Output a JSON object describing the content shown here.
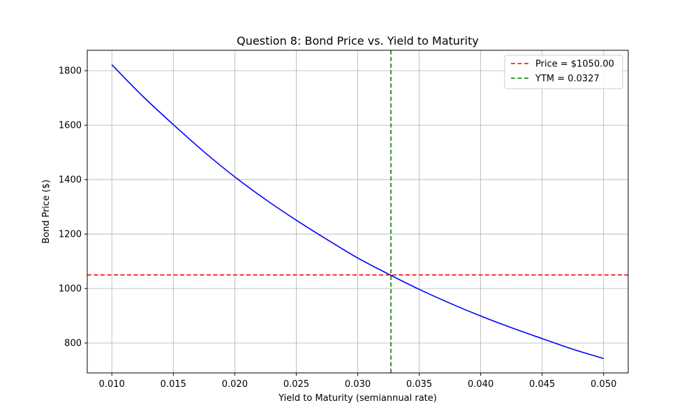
{
  "chart_data": {
    "type": "line",
    "title": "Question 8: Bond Price vs. Yield to Maturity",
    "xlabel": "Yield to Maturity (semiannual rate)",
    "ylabel": "Bond Price ($)",
    "xlim": [
      0.008,
      0.052
    ],
    "ylim": [
      690,
      1875
    ],
    "xticks": [
      0.01,
      0.015,
      0.02,
      0.025,
      0.03,
      0.035,
      0.04,
      0.045,
      0.05
    ],
    "xtick_labels": [
      "0.010",
      "0.015",
      "0.020",
      "0.025",
      "0.030",
      "0.035",
      "0.040",
      "0.045",
      "0.050"
    ],
    "yticks": [
      800,
      1000,
      1200,
      1400,
      1600,
      1800
    ],
    "ytick_labels": [
      "800",
      "1000",
      "1200",
      "1400",
      "1600",
      "1800"
    ],
    "grid": true,
    "legend_position": "top-right",
    "series": [
      {
        "color": "#0000ff",
        "style": "solid",
        "x": [
          0.01,
          0.0125,
          0.015,
          0.0175,
          0.02,
          0.0225,
          0.025,
          0.0275,
          0.03,
          0.0325,
          0.035,
          0.0375,
          0.04,
          0.0425,
          0.045,
          0.0475,
          0.05
        ],
        "y": [
          1822,
          1707,
          1602,
          1502,
          1410,
          1327,
          1251,
          1180,
          1112,
          1053,
          997,
          946,
          899,
          856,
          816,
          777,
          743
        ]
      }
    ],
    "reference_lines": [
      {
        "orientation": "horizontal",
        "value": 1050.0,
        "label": "Price = $1050.00",
        "color": "#ff0000",
        "style": "dashed"
      },
      {
        "orientation": "vertical",
        "value": 0.0327,
        "label": "YTM = 0.0327",
        "color": "#008000",
        "style": "dashed"
      }
    ]
  }
}
